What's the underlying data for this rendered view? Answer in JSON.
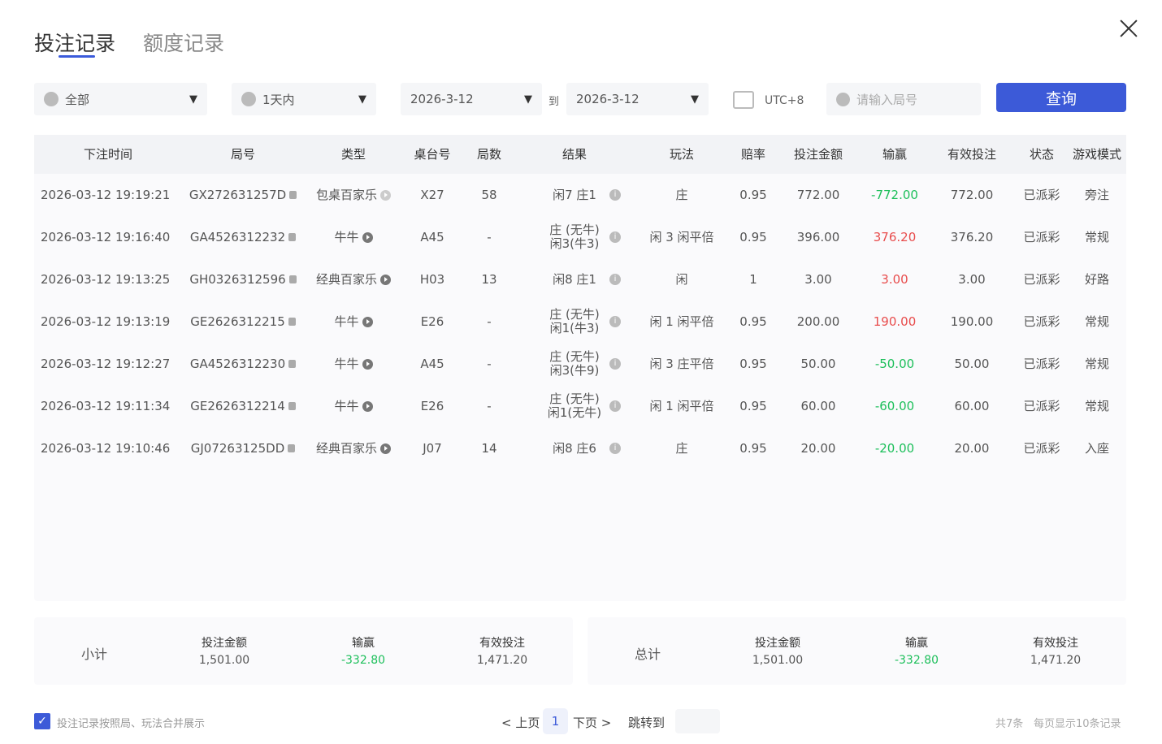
{
  "tabs": [
    {
      "label": "投注记录",
      "active": true
    },
    {
      "label": "额度记录",
      "active": false
    }
  ],
  "filters": {
    "game": "全部",
    "period": "1天内",
    "date_from": "2026-3-12",
    "to_label": "到",
    "date_to": "2026-3-12",
    "timezone": "UTC+8",
    "search_placeholder": "请输入局号",
    "query_button": "查询"
  },
  "table": {
    "headers": [
      "下注时间",
      "局号",
      "类型",
      "桌台号",
      "局数",
      "结果",
      "玩法",
      "赔率",
      "投注金额",
      "输赢",
      "有效投注",
      "状态",
      "游戏模式"
    ],
    "rows": [
      {
        "time": "2026-03-12 19:19:21",
        "id": "GX272631257D",
        "type": "包桌百家乐",
        "table": "X27",
        "round": "58",
        "result": "闲7 庄1",
        "result2": "",
        "play": "庄",
        "odds": "0.95",
        "amount": "772.00",
        "win": "-772.00",
        "win_color": "green",
        "valid": "772.00",
        "status": "已派彩",
        "mode": "旁注"
      },
      {
        "time": "2026-03-12 19:16:40",
        "id": "GA4526312232",
        "type": "牛牛",
        "table": "A45",
        "round": "-",
        "result": "庄 (无牛)",
        "result2": "闲3(牛3)",
        "play": "闲 3 闲平倍",
        "odds": "0.95",
        "amount": "396.00",
        "win": "376.20",
        "win_color": "red",
        "valid": "376.20",
        "status": "已派彩",
        "mode": "常规"
      },
      {
        "time": "2026-03-12 19:13:25",
        "id": "GH0326312596",
        "type": "经典百家乐",
        "table": "H03",
        "round": "13",
        "result": "闲8 庄1",
        "result2": "",
        "play": "闲",
        "odds": "1",
        "amount": "3.00",
        "win": "3.00",
        "win_color": "red",
        "valid": "3.00",
        "status": "已派彩",
        "mode": "好路"
      },
      {
        "time": "2026-03-12 19:13:19",
        "id": "GE2626312215",
        "type": "牛牛",
        "table": "E26",
        "round": "-",
        "result": "庄 (无牛)",
        "result2": "闲1(牛3)",
        "play": "闲 1 闲平倍",
        "odds": "0.95",
        "amount": "200.00",
        "win": "190.00",
        "win_color": "red",
        "valid": "190.00",
        "status": "已派彩",
        "mode": "常规"
      },
      {
        "time": "2026-03-12 19:12:27",
        "id": "GA4526312230",
        "type": "牛牛",
        "table": "A45",
        "round": "-",
        "result": "庄 (无牛)",
        "result2": "闲3(牛9)",
        "play": "闲 3 庄平倍",
        "odds": "0.95",
        "amount": "50.00",
        "win": "-50.00",
        "win_color": "green",
        "valid": "50.00",
        "status": "已派彩",
        "mode": "常规"
      },
      {
        "time": "2026-03-12 19:11:34",
        "id": "GE2626312214",
        "type": "牛牛",
        "table": "E26",
        "round": "-",
        "result": "庄 (无牛)",
        "result2": "闲1(无牛)",
        "play": "闲 1 闲平倍",
        "odds": "0.95",
        "amount": "60.00",
        "win": "-60.00",
        "win_color": "green",
        "valid": "60.00",
        "status": "已派彩",
        "mode": "常规"
      },
      {
        "time": "2026-03-12 19:10:46",
        "id": "GJ07263125DD",
        "type": "经典百家乐",
        "table": "J07",
        "round": "14",
        "result": "闲8 庄6",
        "result2": "",
        "play": "庄",
        "odds": "0.95",
        "amount": "20.00",
        "win": "-20.00",
        "win_color": "green",
        "valid": "20.00",
        "status": "已派彩",
        "mode": "入座"
      }
    ]
  },
  "subtotal": {
    "label": "小计",
    "amount_label": "投注金额",
    "amount": "1,501.00",
    "win_label": "输赢",
    "win": "-332.80",
    "valid_label": "有效投注",
    "valid": "1,471.20"
  },
  "total": {
    "label": "总计",
    "amount_label": "投注金额",
    "amount": "1,501.00",
    "win_label": "输赢",
    "win": "-332.80",
    "valid_label": "有效投注",
    "valid": "1,471.20"
  },
  "footer": {
    "merge_checkbox_label": "投注记录按照局、玩法合并展示",
    "merge_checked": true,
    "prev": "< 上页",
    "page": "1",
    "next": "下页 >",
    "jump_label": "跳转到",
    "total_count": "共7条",
    "per_page": "每页显示10条记录"
  },
  "colors": {
    "accent": "#3c5ad8",
    "win_negative": "#1cbf5a",
    "win_positive": "#e84c4c"
  }
}
